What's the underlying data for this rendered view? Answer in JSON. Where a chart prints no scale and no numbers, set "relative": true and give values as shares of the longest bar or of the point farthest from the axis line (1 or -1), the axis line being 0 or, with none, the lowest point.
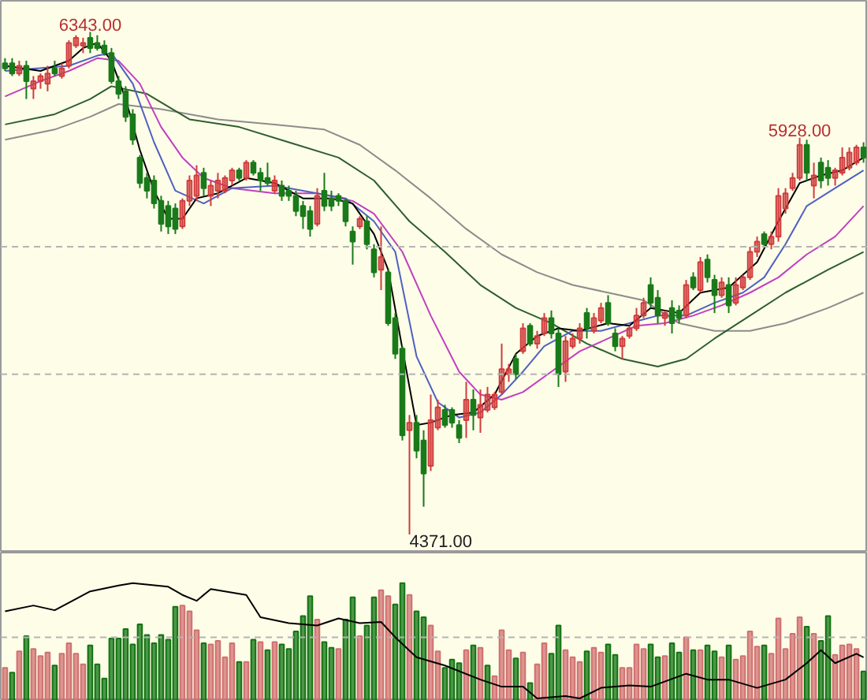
{
  "chart_data": [
    {
      "type": "candlestick",
      "tick_labels": false,
      "categories": [
        null,
        null,
        null,
        null,
        null,
        null,
        null,
        null,
        null,
        null,
        null,
        null,
        null,
        null,
        null,
        null,
        null,
        null,
        null,
        null,
        null,
        null,
        null,
        null,
        null,
        null,
        null,
        null,
        null,
        null,
        null,
        null,
        null,
        null,
        null,
        null,
        null,
        null,
        null,
        null,
        null,
        null,
        null,
        null,
        null,
        null,
        null,
        null,
        null,
        null,
        null,
        null,
        null,
        null,
        null,
        null,
        null,
        null,
        null,
        null,
        null,
        null,
        null,
        null,
        null,
        null,
        null,
        null,
        null,
        null,
        null,
        null,
        null,
        null,
        null,
        null,
        null,
        null,
        null,
        null,
        null,
        null,
        null,
        null,
        null,
        null,
        null,
        null,
        null,
        null,
        null,
        null,
        null,
        null,
        null,
        null,
        null,
        null,
        null,
        null,
        null,
        null,
        null,
        null,
        null,
        null,
        null,
        null,
        null,
        null,
        null,
        null,
        null,
        null,
        null,
        null,
        null,
        null,
        null,
        null,
        null,
        null
      ],
      "ohlc": [
        [
          6220,
          6240,
          6190,
          6200
        ],
        [
          6220,
          6240,
          6170,
          6180
        ],
        [
          6180,
          6230,
          6170,
          6210
        ],
        [
          6210,
          6230,
          6080,
          6150
        ],
        [
          6120,
          6170,
          6080,
          6150
        ],
        [
          6150,
          6180,
          6120,
          6170
        ],
        [
          6140,
          6210,
          6110,
          6180
        ],
        [
          6200,
          6230,
          6170,
          6180
        ],
        [
          6170,
          6220,
          6160,
          6200
        ],
        [
          6210,
          6310,
          6200,
          6300
        ],
        [
          6290,
          6330,
          6280,
          6320
        ],
        [
          6290,
          6320,
          6260,
          6300
        ],
        [
          6320,
          6343,
          6260,
          6280
        ],
        [
          6300,
          6330,
          6270,
          6280
        ],
        [
          6290,
          6310,
          6250,
          6260
        ],
        [
          6260,
          6280,
          6140,
          6150
        ],
        [
          6150,
          6170,
          6080,
          6100
        ],
        [
          6110,
          6130,
          5990,
          6010
        ],
        [
          6020,
          6040,
          5900,
          5920
        ],
        [
          5850,
          5860,
          5730,
          5750
        ],
        [
          5770,
          5790,
          5690,
          5720
        ],
        [
          5760,
          5780,
          5650,
          5670
        ],
        [
          5680,
          5700,
          5560,
          5590
        ],
        [
          5660,
          5680,
          5550,
          5580
        ],
        [
          5650,
          5670,
          5550,
          5570
        ],
        [
          5580,
          5690,
          5570,
          5680
        ],
        [
          5680,
          5780,
          5660,
          5760
        ],
        [
          5700,
          5820,
          5680,
          5780
        ],
        [
          5790,
          5810,
          5700,
          5730
        ],
        [
          5700,
          5760,
          5660,
          5740
        ],
        [
          5720,
          5790,
          5690,
          5760
        ],
        [
          5720,
          5780,
          5710,
          5770
        ],
        [
          5760,
          5810,
          5740,
          5800
        ],
        [
          5800,
          5810,
          5760,
          5770
        ],
        [
          5770,
          5840,
          5760,
          5830
        ],
        [
          5830,
          5840,
          5780,
          5790
        ],
        [
          5790,
          5810,
          5720,
          5760
        ],
        [
          5770,
          5830,
          5740,
          5750
        ],
        [
          5720,
          5780,
          5710,
          5760
        ],
        [
          5740,
          5760,
          5680,
          5700
        ],
        [
          5720,
          5740,
          5680,
          5700
        ],
        [
          5700,
          5720,
          5620,
          5640
        ],
        [
          5660,
          5680,
          5570,
          5620
        ],
        [
          5640,
          5660,
          5540,
          5570
        ],
        [
          5590,
          5730,
          5580,
          5700
        ],
        [
          5720,
          5790,
          5640,
          5660
        ],
        [
          5690,
          5720,
          5640,
          5660
        ],
        [
          5700,
          5710,
          5660,
          5680
        ],
        [
          5680,
          5690,
          5580,
          5600
        ],
        [
          5560,
          5580,
          5430,
          5520
        ],
        [
          5580,
          5620,
          5570,
          5610
        ],
        [
          5600,
          5620,
          5490,
          5510
        ],
        [
          5490,
          5510,
          5380,
          5400
        ],
        [
          5410,
          5580,
          5330,
          5460
        ],
        [
          5400,
          5410,
          5190,
          5200
        ],
        [
          5220,
          5240,
          5060,
          5080
        ],
        [
          5100,
          5110,
          4740,
          4760
        ],
        [
          4780,
          4840,
          4371,
          4810
        ],
        [
          4810,
          4840,
          4670,
          4700
        ],
        [
          4740,
          4780,
          4480,
          4610
        ],
        [
          4640,
          4920,
          4620,
          4820
        ],
        [
          4790,
          4900,
          4780,
          4870
        ],
        [
          4860,
          4880,
          4790,
          4800
        ],
        [
          4860,
          4870,
          4790,
          4810
        ],
        [
          4800,
          4820,
          4730,
          4750
        ],
        [
          4820,
          4970,
          4750,
          4900
        ],
        [
          4900,
          4940,
          4780,
          4840
        ],
        [
          4830,
          4940,
          4770,
          4880
        ],
        [
          4860,
          4950,
          4850,
          4920
        ],
        [
          4870,
          4930,
          4860,
          4920
        ],
        [
          4930,
          5120,
          4920,
          5020
        ],
        [
          5000,
          5040,
          4970,
          5020
        ],
        [
          5060,
          5080,
          4980,
          5000
        ],
        [
          5090,
          5200,
          5080,
          5180
        ],
        [
          5190,
          5200,
          5110,
          5120
        ],
        [
          5120,
          5170,
          5100,
          5150
        ],
        [
          5160,
          5240,
          5150,
          5220
        ],
        [
          5220,
          5250,
          5140,
          5160
        ],
        [
          5160,
          5180,
          4950,
          5000
        ],
        [
          5010,
          5150,
          4970,
          5130
        ],
        [
          5110,
          5160,
          5100,
          5140
        ],
        [
          5140,
          5200,
          5120,
          5180
        ],
        [
          5240,
          5260,
          5140,
          5180
        ],
        [
          5170,
          5240,
          5160,
          5220
        ],
        [
          5210,
          5280,
          5200,
          5260
        ],
        [
          5280,
          5310,
          5190,
          5200
        ],
        [
          5160,
          5180,
          5090,
          5110
        ],
        [
          5110,
          5150,
          5060,
          5140
        ],
        [
          5150,
          5190,
          5140,
          5180
        ],
        [
          5180,
          5260,
          5170,
          5230
        ],
        [
          5230,
          5300,
          5220,
          5280
        ],
        [
          5350,
          5380,
          5260,
          5280
        ],
        [
          5300,
          5330,
          5200,
          5230
        ],
        [
          5220,
          5250,
          5190,
          5240
        ],
        [
          5260,
          5290,
          5160,
          5200
        ],
        [
          5250,
          5270,
          5200,
          5220
        ],
        [
          5230,
          5370,
          5220,
          5350
        ],
        [
          5380,
          5400,
          5330,
          5340
        ],
        [
          5330,
          5460,
          5320,
          5440
        ],
        [
          5450,
          5470,
          5360,
          5380
        ],
        [
          5370,
          5390,
          5240,
          5310
        ],
        [
          5310,
          5380,
          5300,
          5360
        ],
        [
          5350,
          5380,
          5240,
          5270
        ],
        [
          5280,
          5380,
          5270,
          5350
        ],
        [
          5340,
          5390,
          5330,
          5380
        ],
        [
          5380,
          5500,
          5370,
          5480
        ],
        [
          5480,
          5540,
          5460,
          5520
        ],
        [
          5550,
          5560,
          5500,
          5510
        ],
        [
          5510,
          5560,
          5490,
          5540
        ],
        [
          5540,
          5730,
          5520,
          5700
        ],
        [
          5650,
          5730,
          5630,
          5710
        ],
        [
          5730,
          5790,
          5720,
          5770
        ],
        [
          5770,
          5928,
          5760,
          5900
        ],
        [
          5900,
          5920,
          5760,
          5790
        ],
        [
          5740,
          5830,
          5690,
          5780
        ],
        [
          5830,
          5850,
          5730,
          5760
        ],
        [
          5810,
          5840,
          5740,
          5770
        ],
        [
          5770,
          5810,
          5740,
          5800
        ],
        [
          5790,
          5890,
          5780,
          5850
        ],
        [
          5810,
          5890,
          5800,
          5870
        ],
        [
          5830,
          5900,
          5820,
          5890
        ],
        [
          5890,
          5910,
          5830,
          5850
        ]
      ],
      "colors": [
        "#1a7a1a",
        "#1a7a1a",
        "#d03c3c",
        "#1a7a1a",
        "#d03c3c",
        "#d03c3c",
        "#d03c3c",
        "#1a7a1a",
        "#d03c3c",
        "#d03c3c",
        "#d03c3c",
        "#d03c3c",
        "#1a7a1a",
        "#1a7a1a",
        "#1a7a1a",
        "#1a7a1a",
        "#1a7a1a",
        "#1a7a1a",
        "#1a7a1a",
        "#1a7a1a",
        "#1a7a1a",
        "#1a7a1a",
        "#1a7a1a",
        "#1a7a1a",
        "#1a7a1a",
        "#d03c3c",
        "#d03c3c",
        "#d03c3c",
        "#1a7a1a",
        "#d03c3c",
        "#d03c3c",
        "#d03c3c",
        "#d03c3c",
        "#1a7a1a",
        "#d03c3c",
        "#1a7a1a",
        "#1a7a1a",
        "#1a7a1a",
        "#d03c3c",
        "#1a7a1a",
        "#1a7a1a",
        "#1a7a1a",
        "#1a7a1a",
        "#1a7a1a",
        "#d03c3c",
        "#1a7a1a",
        "#1a7a1a",
        "#1a7a1a",
        "#1a7a1a",
        "#1a7a1a",
        "#d03c3c",
        "#1a7a1a",
        "#1a7a1a",
        "#d03c3c",
        "#1a7a1a",
        "#1a7a1a",
        "#1a7a1a",
        "#d03c3c",
        "#1a7a1a",
        "#1a7a1a",
        "#d03c3c",
        "#d03c3c",
        "#1a7a1a",
        "#1a7a1a",
        "#1a7a1a",
        "#d03c3c",
        "#1a7a1a",
        "#d03c3c",
        "#d03c3c",
        "#d03c3c",
        "#d03c3c",
        "#d03c3c",
        "#1a7a1a",
        "#d03c3c",
        "#1a7a1a",
        "#d03c3c",
        "#d03c3c",
        "#1a7a1a",
        "#1a7a1a",
        "#d03c3c",
        "#d03c3c",
        "#d03c3c",
        "#1a7a1a",
        "#d03c3c",
        "#d03c3c",
        "#1a7a1a",
        "#1a7a1a",
        "#d03c3c",
        "#d03c3c",
        "#d03c3c",
        "#d03c3c",
        "#1a7a1a",
        "#1a7a1a",
        "#d03c3c",
        "#1a7a1a",
        "#1a7a1a",
        "#d03c3c",
        "#1a7a1a",
        "#d03c3c",
        "#1a7a1a",
        "#1a7a1a",
        "#d03c3c",
        "#1a7a1a",
        "#d03c3c",
        "#d03c3c",
        "#d03c3c",
        "#d03c3c",
        "#1a7a1a",
        "#d03c3c",
        "#d03c3c",
        "#d03c3c",
        "#d03c3c",
        "#d03c3c",
        "#1a7a1a",
        "#d03c3c",
        "#1a7a1a",
        "#1a7a1a",
        "#d03c3c",
        "#d03c3c",
        "#d03c3c",
        "#d03c3c",
        "#1a7a1a"
      ],
      "series": [
        {
          "type": "line",
          "color": "#8c8c8c",
          "values": [
            5920,
            null,
            null,
            null,
            null,
            null,
            null,
            5960,
            null,
            null,
            null,
            null,
            6010,
            null,
            null,
            null,
            6060,
            null,
            null,
            null,
            null,
            null,
            6040,
            null,
            null,
            null,
            null,
            null,
            null,
            null,
            6000,
            null,
            null,
            null,
            null,
            null,
            null,
            null,
            5980,
            null,
            null,
            null,
            null,
            null,
            null,
            5960,
            null,
            null,
            null,
            null,
            5900,
            null,
            null,
            null,
            null,
            5800,
            null,
            null,
            null,
            null,
            5690,
            null,
            null,
            null,
            null,
            5570,
            null,
            null,
            null,
            null,
            5470,
            null,
            null,
            null,
            null,
            5400,
            null,
            null,
            null,
            null,
            5350,
            null,
            null,
            null,
            null,
            5320,
            null,
            null,
            null,
            null,
            5290,
            null,
            null,
            null,
            null,
            5200,
            null,
            null,
            null,
            null,
            5170,
            null,
            null,
            null,
            null,
            5170,
            null,
            null,
            null,
            null,
            5200,
            null,
            null,
            null,
            null,
            null,
            5260,
            null,
            null,
            null,
            null,
            5320
          ]
        },
        {
          "type": "line",
          "color": "#2e5e2e",
          "values": [
            5980,
            null,
            null,
            null,
            null,
            null,
            null,
            6020,
            null,
            null,
            null,
            null,
            6080,
            null,
            null,
            6130,
            null,
            null,
            null,
            null,
            6100,
            null,
            null,
            null,
            null,
            null,
            6000,
            null,
            null,
            null,
            null,
            null,
            null,
            5970,
            null,
            null,
            null,
            null,
            null,
            null,
            5910,
            null,
            null,
            null,
            null,
            null,
            null,
            5850,
            null,
            null,
            null,
            null,
            5760,
            null,
            null,
            null,
            null,
            5600,
            null,
            null,
            null,
            null,
            5480,
            null,
            null,
            null,
            null,
            5350,
            null,
            null,
            null,
            null,
            5260,
            null,
            null,
            null,
            null,
            5200,
            null,
            null,
            null,
            null,
            5120,
            null,
            null,
            null,
            null,
            5060,
            null,
            null,
            null,
            null,
            5030,
            null,
            null,
            null,
            5060,
            null,
            null,
            null,
            5140,
            null,
            null,
            null,
            null,
            5230,
            null,
            null,
            null,
            null,
            5320,
            null,
            null,
            null,
            null,
            null,
            5410,
            null,
            null,
            null,
            null,
            5480
          ]
        },
        {
          "type": "line",
          "color": "#c040c0",
          "values": [
            6090,
            null,
            null,
            null,
            null,
            6150,
            null,
            null,
            null,
            6190,
            null,
            null,
            null,
            6240,
            null,
            null,
            6230,
            null,
            null,
            6140,
            null,
            null,
            5970,
            null,
            null,
            5850,
            null,
            null,
            5770,
            null,
            null,
            null,
            5730,
            null,
            null,
            null,
            null,
            null,
            5710,
            null,
            null,
            null,
            null,
            null,
            5710,
            null,
            null,
            null,
            null,
            5680,
            null,
            null,
            5630,
            null,
            null,
            null,
            5480,
            null,
            null,
            null,
            5230,
            null,
            null,
            null,
            5010,
            null,
            null,
            4920,
            null,
            null,
            4900,
            null,
            null,
            4930,
            null,
            null,
            null,
            5010,
            null,
            null,
            null,
            5090,
            null,
            null,
            null,
            5140,
            null,
            null,
            null,
            5190,
            null,
            null,
            null,
            5200,
            null,
            null,
            null,
            5230,
            null,
            null,
            null,
            5270,
            null,
            null,
            null,
            5320,
            null,
            null,
            null,
            5380,
            null,
            null,
            null,
            5470,
            null,
            null,
            null,
            5540,
            null,
            null,
            null,
            5660
          ]
        },
        {
          "type": "line",
          "color": "#5060c0",
          "values": [
            6190,
            null,
            null,
            null,
            null,
            null,
            null,
            null,
            null,
            6210,
            null,
            null,
            null,
            6250,
            null,
            6260,
            null,
            null,
            6140,
            null,
            null,
            5910,
            null,
            null,
            5720,
            null,
            null,
            null,
            5670,
            null,
            null,
            null,
            5730,
            null,
            null,
            null,
            null,
            null,
            5740,
            null,
            null,
            null,
            null,
            null,
            5710,
            null,
            null,
            null,
            5690,
            null,
            null,
            null,
            5600,
            null,
            null,
            5480,
            null,
            null,
            5070,
            null,
            null,
            4890,
            null,
            null,
            4830,
            null,
            null,
            4850,
            null,
            null,
            4920,
            null,
            null,
            5010,
            null,
            null,
            5110,
            null,
            null,
            null,
            5170,
            null,
            null,
            null,
            5170,
            null,
            null,
            null,
            5200,
            null,
            null,
            null,
            5230,
            null,
            null,
            null,
            5230,
            null,
            null,
            null,
            5280,
            null,
            null,
            null,
            5320,
            null,
            null,
            5380,
            null,
            null,
            5510,
            null,
            null,
            5660,
            null,
            null,
            null,
            5730,
            null,
            null,
            null,
            5800
          ]
        },
        {
          "type": "line",
          "color": "#000000",
          "values": [
            6210,
            null,
            null,
            null,
            null,
            6190,
            null,
            null,
            null,
            6230,
            null,
            6280,
            null,
            6300,
            null,
            6230,
            null,
            6080,
            null,
            5880,
            null,
            5720,
            null,
            5610,
            null,
            5610,
            null,
            5690,
            null,
            null,
            5710,
            null,
            null,
            null,
            5770,
            null,
            null,
            null,
            5750,
            null,
            null,
            null,
            5690,
            null,
            null,
            null,
            5690,
            null,
            null,
            5670,
            null,
            null,
            5550,
            null,
            5410,
            null,
            5100,
            null,
            4800,
            null,
            4810,
            null,
            null,
            4840,
            null,
            null,
            4850,
            null,
            null,
            4920,
            null,
            null,
            5080,
            null,
            null,
            5150,
            null,
            null,
            5180,
            null,
            null,
            5170,
            null,
            null,
            null,
            5200,
            null,
            null,
            5190,
            null,
            null,
            5260,
            null,
            null,
            null,
            5240,
            null,
            null,
            5320,
            null,
            null,
            null,
            5340,
            null,
            null,
            null,
            5440,
            null,
            null,
            5600,
            null,
            null,
            5750,
            null,
            null,
            5780,
            null,
            null,
            5800,
            null,
            null,
            5850
          ]
        }
      ],
      "annotations": [
        {
          "text": "6343.00",
          "y": 6343
        },
        "4371.00",
        {
          "text": "5928.00",
          "y": 5928
        }
      ],
      "ref_lines": [
        {
          "axis": "y",
          "value": 5500,
          "color": "#b4b4b4",
          "line_style": "dashed"
        },
        {
          "axis": "y",
          "value": 5000,
          "color": "#b4b4b4",
          "line_style": "dashed"
        }
      ]
    },
    {
      "type": "bar",
      "relative": true,
      "tick_labels": false,
      "categories": [
        null,
        null,
        null,
        null,
        null,
        null,
        null,
        null,
        null,
        null,
        null,
        null,
        null,
        null,
        null,
        null,
        null,
        null,
        null,
        null,
        null,
        null,
        null,
        null,
        null,
        null,
        null,
        null,
        null,
        null,
        null,
        null,
        null,
        null,
        null,
        null,
        null,
        null,
        null,
        null,
        null,
        null,
        null,
        null,
        null,
        null,
        null,
        null,
        null,
        null,
        null,
        null,
        null,
        null,
        null,
        null,
        null,
        null,
        null,
        null,
        null,
        null,
        null,
        null,
        null,
        null,
        null,
        null,
        null,
        null,
        null,
        null,
        null,
        null,
        null,
        null,
        null,
        null,
        null,
        null,
        null,
        null,
        null,
        null,
        null,
        null,
        null,
        null,
        null,
        null,
        null,
        null,
        null,
        null,
        null,
        null,
        null,
        null,
        null,
        null,
        null,
        null,
        null,
        null,
        null,
        null,
        null,
        null,
        null,
        null,
        null,
        null,
        null,
        null,
        null,
        null,
        null,
        null,
        null,
        null,
        null,
        null
      ],
      "series": [
        {
          "type": "bar",
          "values": [
            0.28,
            0.24,
            0.42,
            0.55,
            0.44,
            0.38,
            0.41,
            0.3,
            0.4,
            0.49,
            0.4,
            0.31,
            0.47,
            0.31,
            0.19,
            0.53,
            0.53,
            0.61,
            0.48,
            0.65,
            0.56,
            0.49,
            0.56,
            0.52,
            0.8,
            0.81,
            0.76,
            0.6,
            0.49,
            0.48,
            0.51,
            0.37,
            0.49,
            0.33,
            0.33,
            0.52,
            0.5,
            0.43,
            0.5,
            0.48,
            0.44,
            0.59,
            0.72,
            0.89,
            0.69,
            0.5,
            0.45,
            0.44,
            0.69,
            0.88,
            0.55,
            0.64,
            0.88,
            0.94,
            0.89,
            0.82,
            1.0,
            0.9,
            0.76,
            0.71,
            0.64,
            0.42,
            0.28,
            0.35,
            0.32,
            0.43,
            0.47,
            0.45,
            0.3,
            0.21,
            0.6,
            0.43,
            0.36,
            0.41,
            0.15,
            0.31,
            0.49,
            0.4,
            0.64,
            0.43,
            0.37,
            0.33,
            0.42,
            0.45,
            0.41,
            0.48,
            0.39,
            0.28,
            0.28,
            0.48,
            0.44,
            0.48,
            0.37,
            0.38,
            0.49,
            0.41,
            0.54,
            0.43,
            0.43,
            0.47,
            0.42,
            0.37,
            0.47,
            0.35,
            0.38,
            0.59,
            0.46,
            0.47,
            0.4,
            0.7,
            0.44,
            0.57,
            0.71,
            0.63,
            0.57,
            0.51,
            0.72,
            0.39,
            0.47,
            0.48,
            0.44,
            0.25
          ],
          "colors": [
            "#d07070",
            "#127312",
            "#d07070",
            "#127312",
            "#d07070",
            "#d07070",
            "#d07070",
            "#127312",
            "#d07070",
            "#d07070",
            "#d07070",
            "#d07070",
            "#127312",
            "#127312",
            "#127312",
            "#127312",
            "#127312",
            "#127312",
            "#127312",
            "#127312",
            "#127312",
            "#127312",
            "#127312",
            "#127312",
            "#127312",
            "#d07070",
            "#d07070",
            "#d07070",
            "#127312",
            "#d07070",
            "#d07070",
            "#d07070",
            "#d07070",
            "#127312",
            "#d07070",
            "#127312",
            "#d07070",
            "#127312",
            "#d07070",
            "#127312",
            "#127312",
            "#127312",
            "#127312",
            "#127312",
            "#d07070",
            "#127312",
            "#127312",
            "#d07070",
            "#127312",
            "#127312",
            "#d07070",
            "#127312",
            "#127312",
            "#d07070",
            "#d07070",
            "#127312",
            "#127312",
            "#d07070",
            "#127312",
            "#127312",
            "#d07070",
            "#d07070",
            "#127312",
            "#127312",
            "#127312",
            "#d07070",
            "#127312",
            "#d07070",
            "#127312",
            "#d07070",
            "#d07070",
            "#d07070",
            "#127312",
            "#d07070",
            "#127312",
            "#d07070",
            "#d07070",
            "#127312",
            "#127312",
            "#d07070",
            "#d07070",
            "#d07070",
            "#127312",
            "#d07070",
            "#d07070",
            "#127312",
            "#127312",
            "#d07070",
            "#d07070",
            "#d07070",
            "#d07070",
            "#127312",
            "#127312",
            "#d07070",
            "#127312",
            "#127312",
            "#d07070",
            "#127312",
            "#d07070",
            "#127312",
            "#127312",
            "#d07070",
            "#127312",
            "#d07070",
            "#d07070",
            "#d07070",
            "#d07070",
            "#127312",
            "#d07070",
            "#d07070",
            "#d07070",
            "#d07070",
            "#d07070",
            "#127312",
            "#d07070",
            "#127312",
            "#127312",
            "#d07070",
            "#d07070",
            "#d07070",
            "#d07070",
            "#127312"
          ]
        },
        {
          "type": "line",
          "color": "#000000",
          "values": [
            0.76,
            null,
            null,
            null,
            0.81,
            null,
            null,
            0.77,
            null,
            null,
            null,
            null,
            0.93,
            null,
            null,
            null,
            0.98,
            null,
            1.0,
            null,
            null,
            null,
            null,
            0.97,
            null,
            0.9,
            null,
            0.85,
            null,
            0.95,
            null,
            null,
            null,
            null,
            0.9,
            null,
            0.71,
            null,
            null,
            null,
            0.66,
            null,
            null,
            null,
            0.64,
            null,
            null,
            0.7,
            null,
            null,
            0.66,
            null,
            null,
            0.67,
            null,
            0.54,
            null,
            null,
            0.37,
            null,
            null,
            null,
            0.3,
            null,
            null,
            null,
            null,
            0.18,
            null,
            null,
            0.12,
            null,
            null,
            0.12,
            null,
            0.02,
            null,
            null,
            null,
            0.04,
            null,
            0.02,
            null,
            null,
            0.11,
            null,
            null,
            null,
            0.13,
            null,
            null,
            0.12,
            null,
            null,
            null,
            null,
            0.23,
            null,
            null,
            0.18,
            null,
            null,
            0.18,
            null,
            null,
            null,
            0.11,
            null,
            null,
            null,
            0.18,
            null,
            null,
            0.32,
            null,
            0.43,
            null,
            0.32,
            null,
            null,
            0.4,
            0.37
          ]
        }
      ],
      "ref_lines": [
        {
          "axis": "y",
          "value": 0.54,
          "color": "#b4b4b4",
          "line_style": "dashed"
        }
      ]
    }
  ]
}
